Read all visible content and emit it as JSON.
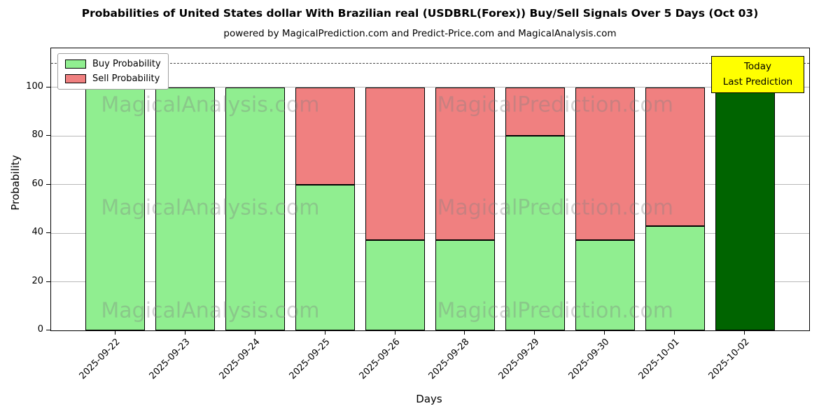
{
  "chart": {
    "title": "Probabilities of United States dollar With Brazilian real (USDBRL(Forex)) Buy/Sell Signals Over 5 Days (Oct 03)",
    "subtitle": "powered by MagicalPrediction.com and Predict-Price.com and MagicalAnalysis.com",
    "xlabel": "Days",
    "ylabel": "Probability"
  },
  "chart_data": {
    "type": "bar",
    "stacked": true,
    "categories": [
      "2025-09-22",
      "2025-09-23",
      "2025-09-24",
      "2025-09-25",
      "2025-09-26",
      "2025-09-28",
      "2025-09-29",
      "2025-09-30",
      "2025-10-01",
      "2025-10-02"
    ],
    "series": [
      {
        "name": "Buy Probability",
        "color": "#90EE90",
        "values": [
          100,
          100,
          100,
          60,
          37,
          37,
          80,
          37,
          43,
          100
        ]
      },
      {
        "name": "Sell Probability",
        "color": "#F08080",
        "values": [
          0,
          0,
          0,
          40,
          63,
          63,
          20,
          63,
          57,
          0
        ]
      }
    ],
    "last_bar_color": "#006400",
    "edge_color": "#000000",
    "ylim": [
      0,
      116
    ],
    "yticks": [
      0,
      20,
      40,
      60,
      80,
      100
    ],
    "dashed_line_y": 110,
    "grid": "horizontal",
    "legend_position": "upper-left",
    "annotation": {
      "lines": [
        "Today",
        "Last Prediction"
      ],
      "bg": "#FFFF00"
    },
    "watermarks": [
      "MagicalAnalysis.com",
      "MagicalPrediction.com"
    ]
  }
}
